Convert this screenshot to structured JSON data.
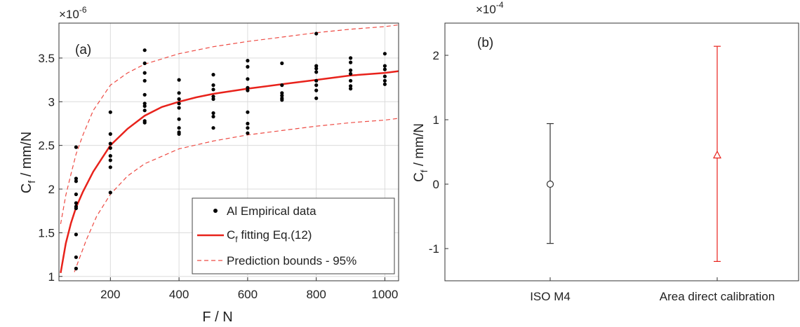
{
  "chart_data": [
    {
      "type": "scatter",
      "panel_label": "(a)",
      "xlabel": "F / N",
      "ylabel_main": "C",
      "ylabel_sub": "f",
      "ylabel_rest": " / mm/N",
      "y_exponent": "×10",
      "y_exponent_power": "-6",
      "xlim": [
        50,
        1040
      ],
      "ylim": [
        0.95,
        3.9
      ],
      "xticks": [
        200,
        400,
        600,
        800,
        1000
      ],
      "yticks": [
        1,
        1.5,
        2,
        2.5,
        3,
        3.5
      ],
      "grid": true,
      "legend_position": "bottom-right",
      "colors": {
        "points": "#000000",
        "fit": "#e8221b",
        "bounds": "#ee4b44",
        "grid": "#dcdcdc",
        "axis": "#333333"
      },
      "legend": [
        {
          "label": "Al Empirical data",
          "style": "marker"
        },
        {
          "label_main": "C",
          "label_sub": "f",
          "label_rest": " fitting Eq.(12)",
          "style": "solid"
        },
        {
          "label": "Prediction bounds - 95%",
          "style": "dashed"
        }
      ],
      "series": [
        {
          "name": "Al Empirical data",
          "points": [
            [
              100,
              2.48
            ],
            [
              100,
              2.12
            ],
            [
              100,
              2.09
            ],
            [
              100,
              1.94
            ],
            [
              100,
              1.84
            ],
            [
              100,
              1.8
            ],
            [
              100,
              1.78
            ],
            [
              100,
              1.48
            ],
            [
              100,
              1.22
            ],
            [
              100,
              1.09
            ],
            [
              200,
              2.88
            ],
            [
              200,
              2.63
            ],
            [
              200,
              2.52
            ],
            [
              200,
              2.47
            ],
            [
              200,
              2.38
            ],
            [
              200,
              2.33
            ],
            [
              200,
              2.25
            ],
            [
              200,
              1.96
            ],
            [
              300,
              3.59
            ],
            [
              300,
              3.44
            ],
            [
              300,
              3.33
            ],
            [
              300,
              3.24
            ],
            [
              300,
              3.08
            ],
            [
              300,
              2.98
            ],
            [
              300,
              2.95
            ],
            [
              300,
              2.9
            ],
            [
              300,
              2.78
            ],
            [
              300,
              2.76
            ],
            [
              400,
              3.25
            ],
            [
              400,
              3.1
            ],
            [
              400,
              3.03
            ],
            [
              400,
              2.98
            ],
            [
              400,
              2.93
            ],
            [
              400,
              2.8
            ],
            [
              400,
              2.7
            ],
            [
              400,
              2.65
            ],
            [
              400,
              2.63
            ],
            [
              500,
              3.31
            ],
            [
              500,
              3.19
            ],
            [
              500,
              3.14
            ],
            [
              500,
              3.06
            ],
            [
              500,
              3.03
            ],
            [
              500,
              2.87
            ],
            [
              500,
              2.83
            ],
            [
              500,
              2.7
            ],
            [
              600,
              3.47
            ],
            [
              600,
              3.4
            ],
            [
              600,
              3.26
            ],
            [
              600,
              3.16
            ],
            [
              600,
              3.13
            ],
            [
              600,
              2.88
            ],
            [
              600,
              2.75
            ],
            [
              600,
              2.7
            ],
            [
              600,
              2.64
            ],
            [
              700,
              3.44
            ],
            [
              700,
              3.19
            ],
            [
              700,
              3.1
            ],
            [
              700,
              3.07
            ],
            [
              700,
              3.04
            ],
            [
              700,
              3.02
            ],
            [
              800,
              3.78
            ],
            [
              800,
              3.41
            ],
            [
              800,
              3.38
            ],
            [
              800,
              3.34
            ],
            [
              800,
              3.24
            ],
            [
              800,
              3.19
            ],
            [
              800,
              3.13
            ],
            [
              800,
              3.04
            ],
            [
              900,
              3.5
            ],
            [
              900,
              3.45
            ],
            [
              900,
              3.36
            ],
            [
              900,
              3.32
            ],
            [
              900,
              3.24
            ],
            [
              900,
              3.18
            ],
            [
              900,
              3.15
            ],
            [
              1000,
              3.55
            ],
            [
              1000,
              3.41
            ],
            [
              1000,
              3.37
            ],
            [
              1000,
              3.29
            ],
            [
              1000,
              3.24
            ],
            [
              1000,
              3.2
            ]
          ]
        },
        {
          "name": "C_f fitting Eq.(12)",
          "x": [
            55,
            70,
            85,
            100,
            120,
            150,
            200,
            250,
            300,
            350,
            400,
            450,
            500,
            600,
            700,
            800,
            900,
            1000,
            1040
          ],
          "y": [
            1.04,
            1.38,
            1.61,
            1.79,
            1.97,
            2.2,
            2.5,
            2.69,
            2.84,
            2.94,
            3.0,
            3.05,
            3.09,
            3.15,
            3.2,
            3.25,
            3.3,
            3.33,
            3.35
          ]
        },
        {
          "name": "Prediction bounds - 95% (upper)",
          "x": [
            55,
            70,
            85,
            100,
            120,
            150,
            200,
            250,
            300,
            400,
            500,
            600,
            700,
            800,
            900,
            1000,
            1040
          ],
          "y": [
            1.6,
            1.93,
            2.17,
            2.4,
            2.62,
            2.9,
            3.19,
            3.33,
            3.43,
            3.55,
            3.63,
            3.69,
            3.74,
            3.79,
            3.83,
            3.86,
            3.88
          ]
        },
        {
          "name": "Prediction bounds - 95% (lower)",
          "x": [
            95,
            110,
            130,
            160,
            200,
            250,
            300,
            400,
            500,
            600,
            700,
            800,
            900,
            1000,
            1040
          ],
          "y": [
            1.05,
            1.21,
            1.42,
            1.69,
            1.94,
            2.15,
            2.29,
            2.46,
            2.55,
            2.62,
            2.67,
            2.72,
            2.76,
            2.79,
            2.81
          ]
        }
      ]
    },
    {
      "type": "errorbar",
      "panel_label": "(b)",
      "ylabel_main": "C",
      "ylabel_sub": "f",
      "ylabel_rest": " / mm/N",
      "y_exponent": "×10",
      "y_exponent_power": "-4",
      "categories": [
        "ISO M4",
        "Area direct calibration"
      ],
      "ylim": [
        -1.5,
        2.5
      ],
      "yticks": [
        -1,
        0,
        1,
        2
      ],
      "grid": false,
      "colors": {
        "iso": "#333333",
        "area": "#e8221b",
        "axis": "#333333"
      },
      "series": [
        {
          "category": "ISO M4",
          "value": 0.0,
          "lower": -0.92,
          "upper": 0.94,
          "marker": "circle"
        },
        {
          "category": "Area direct calibration",
          "value": 0.45,
          "lower": -1.2,
          "upper": 2.14,
          "marker": "triangle"
        }
      ]
    }
  ]
}
